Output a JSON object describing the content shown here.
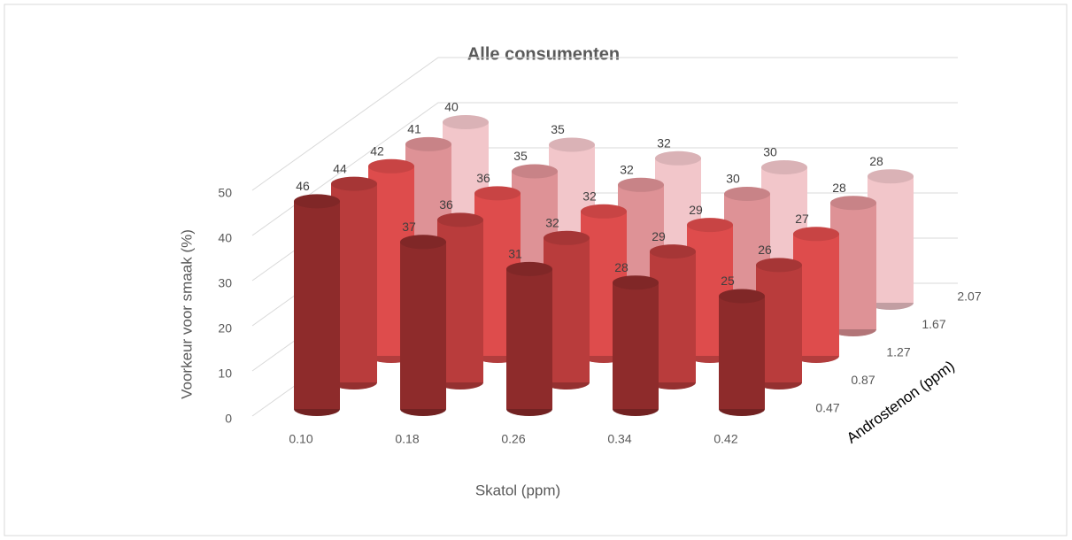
{
  "chart_data": {
    "type": "bar3d",
    "title": "Alle consumenten",
    "y_label": "Voorkeur voor smaak (%)",
    "x_label": "Skatol (ppm)",
    "z_label": "Androstenon (ppm)",
    "categories": [
      "0.10",
      "0.18",
      "0.26",
      "0.34",
      "0.42"
    ],
    "series": [
      {
        "name": "0.47",
        "color": "#8e2b2b",
        "values": [
          46,
          37,
          31,
          28,
          25
        ]
      },
      {
        "name": "0.87",
        "color": "#b93c3c",
        "values": [
          44,
          36,
          32,
          29,
          26
        ]
      },
      {
        "name": "1.27",
        "color": "#de4c4c",
        "values": [
          42,
          36,
          32,
          29,
          27
        ]
      },
      {
        "name": "1.67",
        "color": "#de9296",
        "values": [
          41,
          35,
          32,
          30,
          28
        ]
      },
      {
        "name": "2.07",
        "color": "#f2c6ca",
        "values": [
          40,
          35,
          32,
          30,
          28
        ]
      }
    ],
    "ylim": [
      0,
      50
    ],
    "yticks": [
      0,
      10,
      20,
      30,
      40,
      50
    ],
    "grid": true
  }
}
